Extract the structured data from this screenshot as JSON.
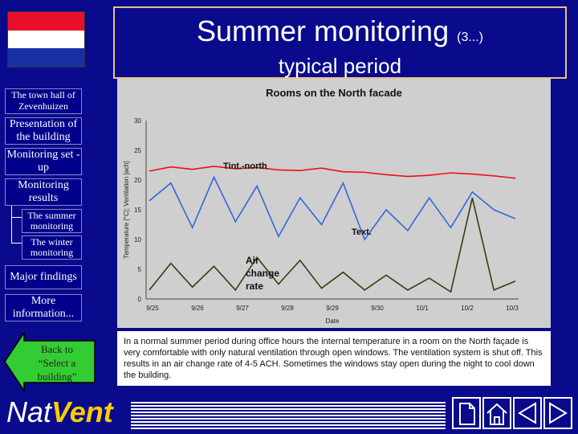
{
  "header": {
    "title": "Summer monitoring",
    "title_suffix": "(3...)",
    "subtitle": "typical period"
  },
  "flag_colors": [
    "#e8102b",
    "#ffffff",
    "#1730a6"
  ],
  "nav": {
    "items": [
      {
        "label": "The town hall of Zevenhuizen"
      },
      {
        "label": "Presentation of the building"
      },
      {
        "label": "Monitoring set -up"
      },
      {
        "label": "Monitoring results"
      },
      {
        "label": "Major findings"
      },
      {
        "label": "More information..."
      }
    ],
    "subitems": [
      {
        "label": "The summer monitoring"
      },
      {
        "label": "The winter monitoring"
      }
    ]
  },
  "back_button": {
    "label": "Back to “Select a building”"
  },
  "logo": {
    "part1": "Nat",
    "part2": "Vent"
  },
  "caption": "In a normal summer period during office hours the internal temperature in a room on the North façade is very comfortable with only natural ventilation through open windows. The ventilation system is shut off. This results in an air change rate of 4-5 ACH. Sometimes the windows stay open during the night to cool down the building.",
  "chart_data": {
    "type": "line",
    "title": "Rooms on the North facade",
    "xlabel": "Date",
    "ylabel": "Temperature [°C]; Ventilation [ach]",
    "ylim": [
      0,
      30
    ],
    "yticks": [
      0,
      5,
      10,
      15,
      20,
      25,
      30
    ],
    "xticks": [
      "9/25",
      "9/26",
      "9/27",
      "9/28",
      "9/29",
      "9/30",
      "10/1",
      "10/2",
      "10/3"
    ],
    "series": [
      {
        "name": "Tint.-north",
        "color": "#ee1111",
        "values": [
          21.5,
          22.2,
          21.8,
          22.3,
          21.9,
          22.1,
          21.7,
          21.6,
          22.0,
          21.4,
          21.3,
          20.9,
          20.6,
          20.8,
          21.2,
          21.0,
          20.7,
          20.3
        ]
      },
      {
        "name": "Text.",
        "color": "#3366dd",
        "values": [
          16.5,
          19.5,
          12.0,
          20.5,
          13.0,
          19.0,
          10.5,
          17.0,
          12.5,
          19.5,
          10.0,
          15.0,
          11.5,
          17.0,
          12.0,
          18.0,
          15.0,
          13.5
        ]
      },
      {
        "name": "Air change rate",
        "color": "#3b3b10",
        "values": [
          1.5,
          6.0,
          2.0,
          5.5,
          1.5,
          7.0,
          2.5,
          6.5,
          1.8,
          4.5,
          1.5,
          4.0,
          1.5,
          3.5,
          1.2,
          17.0,
          1.5,
          3.0
        ]
      }
    ]
  }
}
